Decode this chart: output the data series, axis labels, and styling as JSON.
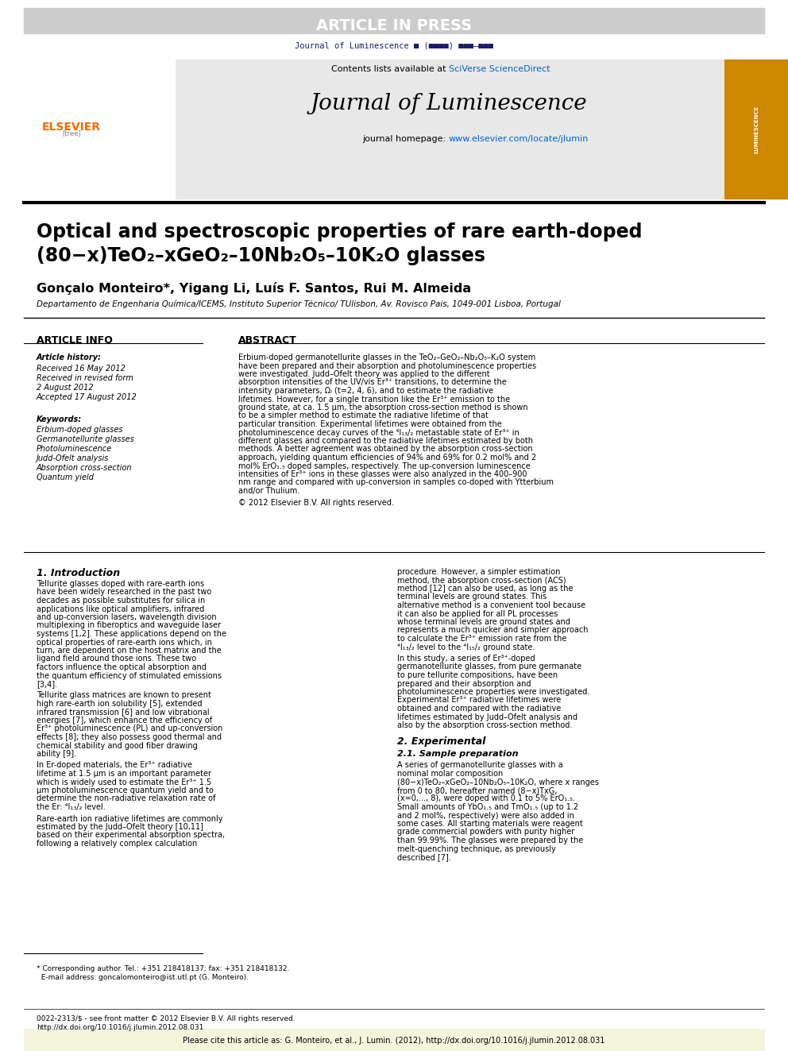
{
  "article_in_press_bg": "#cccccc",
  "article_in_press_text": "ARTICLE IN PRESS",
  "journal_small_text": "Journal of Luminescence ■ (■■■■) ■■■–■■■",
  "header_bg": "#e8e8e8",
  "header_title": "Journal of Luminescence",
  "header_contents": "Contents lists available at SciVerse ScienceDirect",
  "header_homepage": "journal homepage: www.elsevier.com/locate/jlumin",
  "elsevier_color": "#ff6600",
  "sciverse_color": "#0066cc",
  "homepage_color": "#0066cc",
  "title_line1": "Optical and spectroscopic properties of rare earth-doped",
  "title_line2": "(80−x)TeO₂–xGeO₂–10Nb₂O₅–10K₂O glasses",
  "authors": "Gonçalo Monteiro*, Yigang Li, Luís F. Santos, Rui M. Almeida",
  "affiliation": "Departamento de Engenharia Química/ICEMS, Instituto Superior Técnico/ TUlisbon, Av. Rovisco Pais, 1049-001 Lisboa, Portugal",
  "article_info_title": "ARTICLE INFO",
  "abstract_title": "ABSTRACT",
  "article_history_label": "Article history:",
  "received1": "Received 16 May 2012",
  "received2": "Received in revised form",
  "received2b": "2 August 2012",
  "accepted": "Accepted 17 August 2012",
  "keywords_label": "Keywords:",
  "keywords": [
    "Erbium-doped glasses",
    "Germanotellurite glasses",
    "Photoluminescence",
    "Judd-Ofelt analysis",
    "Absorption cross-section",
    "Quantum yield"
  ],
  "abstract_text": "Erbium-doped germanotellurite glasses in the TeO₂–GeO₂–Nb₂O₅–K₂O system have been prepared and their absorption and photoluminescence properties were investigated. Judd–Ofelt theory was applied to the different absorption intensities of the UV/vis Er³⁺ transitions, to determine the intensity parameters, Ωₗ (t=2, 4, 6), and to estimate the radiative lifetimes. However, for a single transition like the Er³⁺ emission to the ground state, at ca. 1.5 μm, the absorption cross-section method is shown to be a simpler method to estimate the radiative lifetime of that particular transition. Experimental lifetimes were obtained from the photoluminescence decay curves of the ⁴I₁₃/₂ metastable state of Er³⁺ in different glasses and compared to the radiative lifetimes estimated by both methods. A better agreement was obtained by the absorption cross-section approach, yielding quantum efficiencies of 94% and 69% for 0.2 mol% and 2 mol% ErO₁.₅ doped samples, respectively. The up-conversion luminescence intensities of Er³⁺ ions in these glasses were also analyzed in the 400–900 nm range and compared with up-conversion in samples co-doped with Ytterbium and/or Thulium.",
  "copyright": "© 2012 Elsevier B.V. All rights reserved.",
  "intro_title": "1. Introduction",
  "intro_text": "Tellurite glasses doped with rare-earth ions have been widely researched in the past two decades as possible substitutes for silica in applications like optical amplifiers, infrared and up-conversion lasers, wavelength division multiplexing in fiberoptics and waveguide laser systems [1,2]. These applications depend on the optical properties of rare-earth ions which, in turn, are dependent on the host matrix and the ligand field around those ions. These two factors influence the optical absorption and the quantum efficiency of stimulated emissions [3,4].\n    Tellurite glass matrices are known to present high rare-earth ion solubility [5], extended infrared transmission [6] and low vibrational energies [7], which enhance the efficiency of Er³⁺ photoluminescence (PL) and up-conversion effects [8]; they also possess good thermal and chemical stability and good fiber drawing ability [9].\n    In Er-doped materials, the Er³⁺ radiative lifetime at 1.5 μm is an important parameter which is widely used to estimate the Er³⁺ 1.5 μm photoluminescence quantum yield and to determine the non-radiative relaxation rate of the Er: ⁴I₁₃/₂ level.\n    Rare-earth ion radiative lifetimes are commonly estimated by the Judd–Ofelt theory [10,11] based on their experimental absorption spectra, following a relatively complex calculation",
  "right_col_text": "procedure. However, a simpler estimation method, the absorption cross-section (ACS) method [12] can also be used, as long as the terminal levels are ground states. This alternative method is a convenient tool because it can also be applied for all PL processes whose terminal levels are ground states and represents a much quicker and simpler approach to calculate the Er³⁺ emission rate from the ⁴I₁₃/₂ level to the ⁴I₁₅/₂ ground state.\n    In this study, a series of Er³⁺-doped germanotellurite glasses, from pure germanate to pure tellurite compositions, have been prepared and their absorption and photoluminescence properties were investigated. Experimental Er³⁺ radiative lifetimes were obtained and compared with the radiative lifetimes estimated by Judd–Ofelt analysis and also by the absorption cross-section method.",
  "section2_title": "2. Experimental",
  "section21_title": "2.1. Sample preparation",
  "section21_text": "A series of germanotellurite glasses with a nominal molar composition (80−x)TeO₂–xGeO₂–10Nb₂O₅–10K₂O, where x ranges from 0 to 80, hereafter named (8−x)TxG, (x=0,..., 8), were doped with 0.1 to 5% ErO₁.₅. Small amounts of YbO₁.₅ and TmO₁.₅ (up to 1.2 and 2 mol%, respectively) were also added in some cases. All starting materials were reagent grade commercial powders with purity higher than 99.99%. The glasses were prepared by the melt-quenching technique, as previously described [7].",
  "footnote_text": "* Corresponding author. Tel.: +351 218418137; fax: +351 218418132.\n  E-mail address: goncalomonteiro@ist.utl.pt (G. Monteiro).",
  "footer_left": "0022-2313/$ - see front matter © 2012 Elsevier B.V. All rights reserved.",
  "footer_left2": "http://dx.doi.org/10.1016/j.jlumin.2012.08.031",
  "citation_bar_text": "Please cite this article as: G. Monteiro, et al., J. Lumin. (2012), http://dx.doi.org/10.1016/j.jlumin.2012.08.031",
  "bg_color": "#ffffff",
  "text_color": "#000000",
  "dark_header_color": "#1a1a2e"
}
